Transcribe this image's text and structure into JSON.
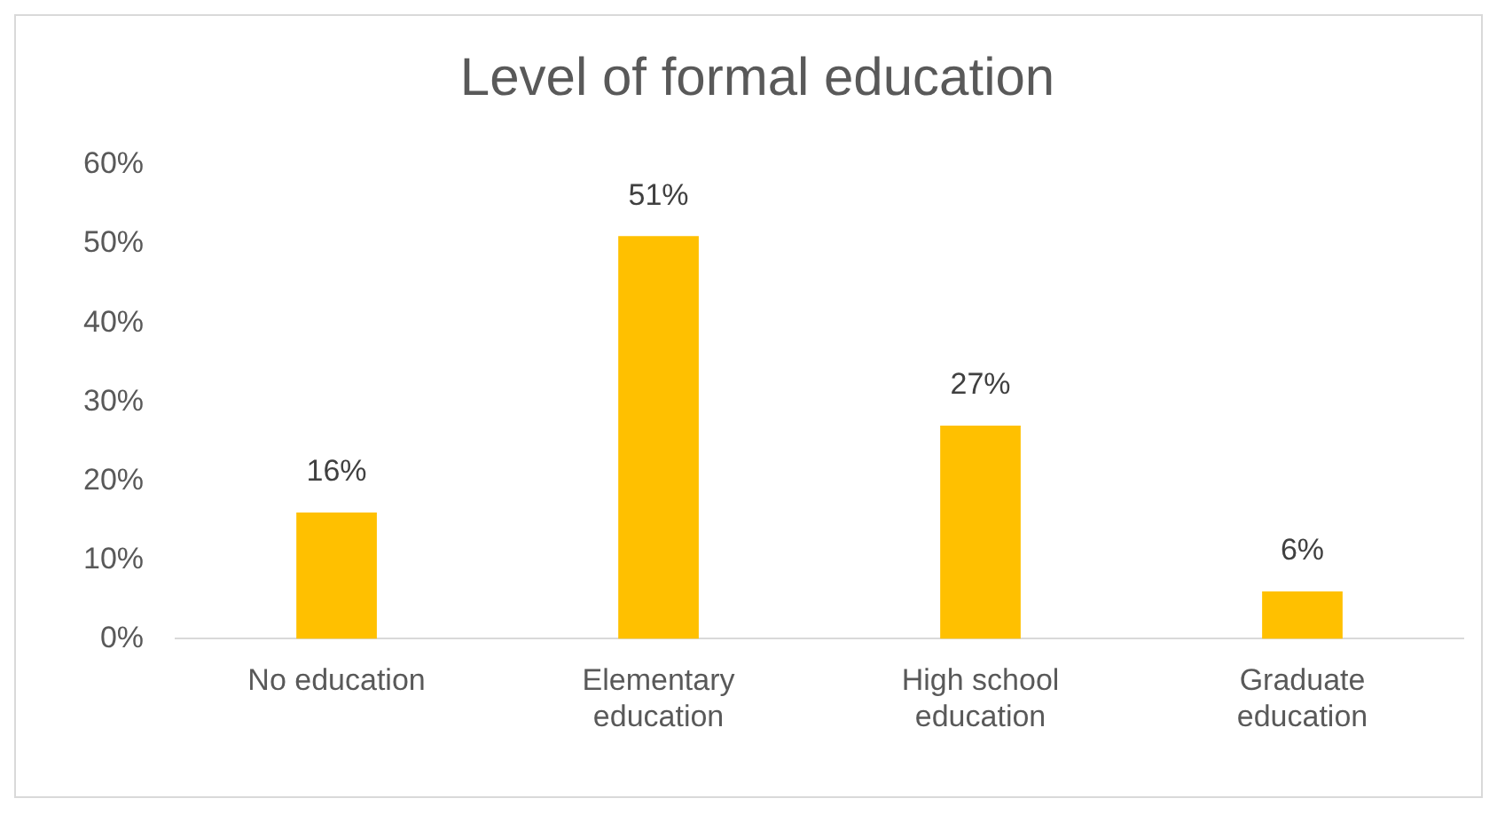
{
  "chart_data": {
    "type": "bar",
    "title": "Level of formal education",
    "categories": [
      "No education",
      "Elementary education",
      "High school education",
      "Graduate education"
    ],
    "values": [
      16,
      51,
      27,
      6
    ],
    "value_labels": [
      "16%",
      "51%",
      "27%",
      "6%"
    ],
    "color": "#ffc000",
    "ylim": [
      0,
      60
    ],
    "yticks": [
      {
        "value": 0,
        "label": "0%"
      },
      {
        "value": 10,
        "label": "10%"
      },
      {
        "value": 20,
        "label": "20%"
      },
      {
        "value": 30,
        "label": "30%"
      },
      {
        "value": 40,
        "label": "40%"
      },
      {
        "value": 50,
        "label": "50%"
      },
      {
        "value": 60,
        "label": "60%"
      }
    ],
    "grid": false,
    "legend": false
  }
}
